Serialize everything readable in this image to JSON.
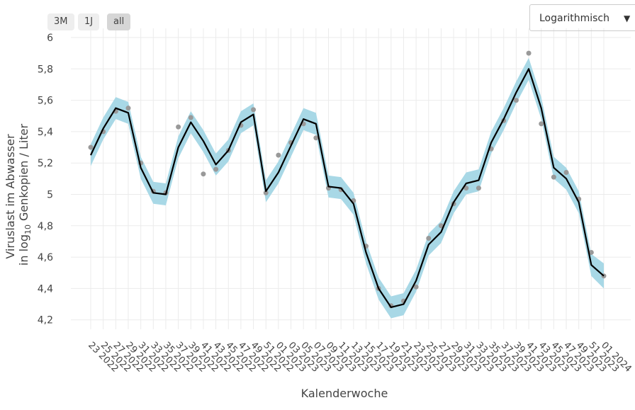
{
  "controls": {
    "buttons": [
      "3M",
      "1J",
      "all"
    ],
    "scale_select": "Logarithmisch"
  },
  "chart_data": {
    "type": "line",
    "ylabel": {
      "line1": "Viruslast im Abwasser",
      "before": "in log",
      "sub": "10",
      "after": "Genkopien / Liter"
    },
    "xlabel": "Kalenderwoche",
    "categories": [
      "23 2022",
      "25 2022",
      "27 2022",
      "29 2022",
      "31 2022",
      "33 2022",
      "35 2022",
      "37 2022",
      "39 2022",
      "41 2022",
      "43 2022",
      "45 2022",
      "47 2022",
      "49 2022",
      "51 2022",
      "01 2023",
      "03 2023",
      "05 2023",
      "07 2023",
      "09 2023",
      "11 2023",
      "13 2023",
      "15 2023",
      "17 2023",
      "19 2023",
      "21 2023",
      "23 2023",
      "25 2023",
      "27 2023",
      "29 2023",
      "31 2023",
      "33 2023",
      "35 2023",
      "37 2023",
      "39 2023",
      "41 2023",
      "43 2023",
      "45 2023",
      "47 2023",
      "49 2023",
      "51 2023",
      "01 2024"
    ],
    "values": [
      5.25,
      5.42,
      5.55,
      5.52,
      5.17,
      5.01,
      5.0,
      5.3,
      5.46,
      5.34,
      5.19,
      5.28,
      5.46,
      5.51,
      5.02,
      5.14,
      5.31,
      5.48,
      5.45,
      5.05,
      5.04,
      4.94,
      4.63,
      4.4,
      4.28,
      4.3,
      4.45,
      4.68,
      4.76,
      4.95,
      5.07,
      5.09,
      5.33,
      5.48,
      5.65,
      5.8,
      5.55,
      5.17,
      5.1,
      4.95,
      4.55,
      4.48
    ],
    "color": "#000000",
    "band": {
      "color": "#a8d8e6",
      "lower": [
        5.18,
        5.35,
        5.48,
        5.45,
        5.1,
        4.94,
        4.93,
        5.23,
        5.39,
        5.27,
        5.12,
        5.21,
        5.39,
        5.44,
        4.95,
        5.07,
        5.24,
        5.41,
        5.38,
        4.98,
        4.97,
        4.87,
        4.56,
        4.33,
        4.21,
        4.23,
        4.38,
        4.61,
        4.69,
        4.88,
        5.0,
        5.02,
        5.26,
        5.41,
        5.58,
        5.73,
        5.48,
        5.1,
        5.03,
        4.88,
        4.48,
        4.4
      ],
      "upper": [
        5.32,
        5.49,
        5.62,
        5.59,
        5.24,
        5.08,
        5.07,
        5.37,
        5.53,
        5.41,
        5.26,
        5.35,
        5.53,
        5.58,
        5.09,
        5.21,
        5.38,
        5.55,
        5.52,
        5.12,
        5.11,
        5.01,
        4.7,
        4.47,
        4.35,
        4.37,
        4.52,
        4.75,
        4.83,
        5.02,
        5.14,
        5.16,
        5.4,
        5.55,
        5.72,
        5.87,
        5.62,
        5.24,
        5.17,
        5.02,
        4.62,
        4.56
      ]
    },
    "points": {
      "color": "#999999",
      "values": [
        5.3,
        5.4,
        5.53,
        5.55,
        5.2,
        5.02,
        5.01,
        5.43,
        5.49,
        5.13,
        5.16,
        5.28,
        5.44,
        5.54,
        5.01,
        5.25,
        5.33,
        5.45,
        5.36,
        5.04,
        5.03,
        4.96,
        4.67,
        4.4,
        4.29,
        4.32,
        4.41,
        4.72,
        4.8,
        4.94,
        5.04,
        5.04,
        5.29,
        5.47,
        5.6,
        5.9,
        5.45,
        5.11,
        5.14,
        4.97,
        4.63,
        4.48
      ]
    },
    "ylim": [
      4.14,
      6.0
    ],
    "yticks": [
      {
        "value": 4.2,
        "label": "4,2"
      },
      {
        "value": 4.4,
        "label": "4,4"
      },
      {
        "value": 4.6,
        "label": "4,6"
      },
      {
        "value": 4.8,
        "label": "4,8"
      },
      5,
      {
        "value": 5.2,
        "label": "5,2"
      },
      {
        "value": 5.4,
        "label": "5,4"
      },
      {
        "value": 5.6,
        "label": "5,6"
      },
      {
        "value": 5.8,
        "label": "5,8"
      },
      6
    ],
    "grid": true
  }
}
